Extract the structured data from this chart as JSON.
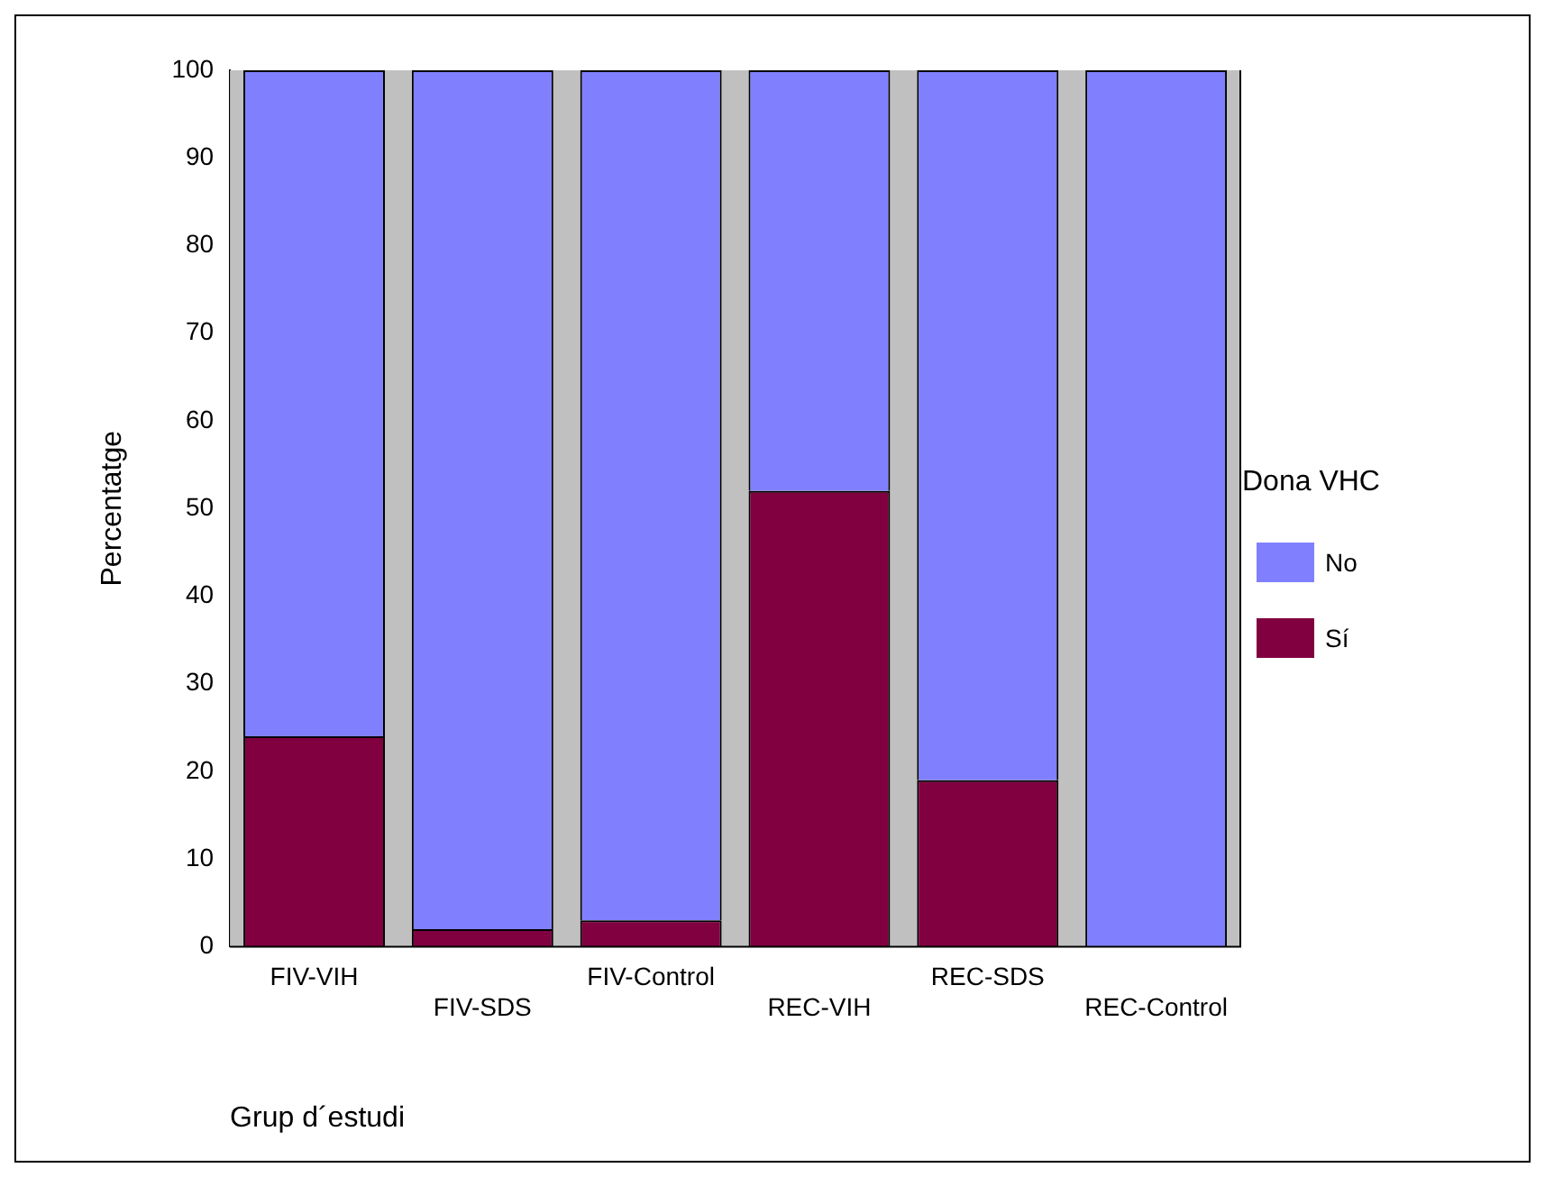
{
  "chart_data": {
    "type": "bar",
    "stacked": true,
    "categories": [
      "FIV-VIH",
      "FIV-SDS",
      "FIV-Control",
      "REC-VIH",
      "REC-SDS",
      "REC-Control"
    ],
    "series": [
      {
        "name": "Sí",
        "color": "#800040",
        "values": [
          24,
          2,
          3,
          52,
          19,
          0
        ]
      },
      {
        "name": "No",
        "color": "#8080ff",
        "values": [
          76,
          98,
          97,
          48,
          81,
          100
        ]
      }
    ],
    "ylim": [
      0,
      100
    ],
    "yticks": [
      0,
      10,
      20,
      30,
      40,
      50,
      60,
      70,
      80,
      90,
      100
    ],
    "xlabel": "Grup d´estudi",
    "ylabel": "Percentatge",
    "legend_title": "Dona VHC",
    "legend": "right",
    "grid": false
  }
}
